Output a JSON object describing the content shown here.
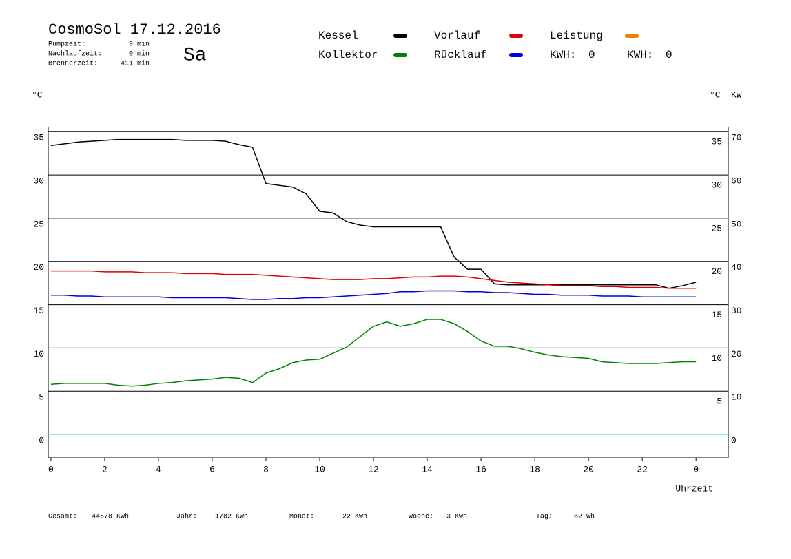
{
  "header": {
    "title": "CosmoSol 17.12.2016",
    "day": "Sa",
    "info": [
      {
        "label": "Pumpzeit:",
        "value": "9 min"
      },
      {
        "label": "Nachlaufzeit:",
        "value": "0 min"
      },
      {
        "label": "Brennerzeit:",
        "value": "411 min"
      }
    ],
    "kwh": [
      {
        "label": "KWH:",
        "value": 0,
        "color": "#f08000"
      },
      {
        "label": "KWH:",
        "value": 0,
        "color": "#800080"
      }
    ]
  },
  "chart_data": {
    "type": "line",
    "y_unit": "°C",
    "y2_unit_left": "°C",
    "y2_unit": "KW",
    "y2_color": "#e08000",
    "xlabel": "Uhrzeit",
    "x": [
      0,
      0.5,
      1,
      1.5,
      2,
      2.5,
      3,
      3.5,
      4,
      4.5,
      5,
      5.5,
      6,
      6.5,
      7,
      7.5,
      8,
      8.5,
      9,
      9.5,
      10,
      10.5,
      11,
      11.5,
      12,
      12.5,
      13,
      13.5,
      14,
      14.5,
      15,
      15.5,
      16,
      16.5,
      17,
      17.5,
      18,
      18.5,
      19,
      19.5,
      20,
      20.5,
      21,
      21.5,
      22,
      22.5,
      23,
      23.5,
      24
    ],
    "xlim": [
      -0.1,
      25.2
    ],
    "xticks": [
      0,
      2,
      4,
      6,
      8,
      10,
      12,
      14,
      16,
      18,
      20,
      22,
      {
        "value": 24,
        "label": "0"
      }
    ],
    "ylim": [
      -2.7,
      35.5
    ],
    "yticks": [
      0,
      5,
      10,
      15,
      20,
      25,
      30,
      35
    ],
    "yticks_right": [
      5,
      10,
      15,
      20,
      25,
      30,
      35
    ],
    "y2lim": [
      -5.4,
      71
    ],
    "y2ticks": [
      0,
      10,
      20,
      30,
      40,
      50,
      60,
      70
    ],
    "grid": true,
    "zero_line_color": "#40e0e0",
    "series": [
      {
        "name": "Kessel",
        "color": "#000000",
        "values": [
          33.4,
          33.6,
          33.8,
          33.9,
          34.0,
          34.1,
          34.1,
          34.1,
          34.1,
          34.1,
          34.0,
          34.0,
          34.0,
          33.9,
          33.5,
          33.2,
          29.0,
          28.8,
          28.6,
          27.8,
          25.8,
          25.6,
          24.6,
          24.2,
          24.0,
          24.0,
          24.0,
          24.0,
          24.0,
          24.0,
          20.5,
          19.1,
          19.1,
          17.4,
          17.3,
          17.3,
          17.3,
          17.3,
          17.3,
          17.3,
          17.3,
          17.3,
          17.3,
          17.3,
          17.3,
          17.3,
          16.9,
          17.2,
          17.6
        ]
      },
      {
        "name": "Vorlauf",
        "color": "#e00000",
        "values": [
          18.9,
          18.9,
          18.9,
          18.9,
          18.8,
          18.8,
          18.8,
          18.7,
          18.7,
          18.7,
          18.6,
          18.6,
          18.6,
          18.5,
          18.5,
          18.5,
          18.4,
          18.3,
          18.2,
          18.1,
          18.0,
          17.9,
          17.9,
          17.9,
          18.0,
          18.0,
          18.1,
          18.2,
          18.2,
          18.3,
          18.3,
          18.2,
          18.0,
          17.8,
          17.6,
          17.5,
          17.4,
          17.3,
          17.2,
          17.2,
          17.2,
          17.1,
          17.1,
          17.0,
          17.0,
          17.0,
          16.9,
          16.9,
          16.9
        ]
      },
      {
        "name": "Leistung",
        "color": "#f08000",
        "values": [
          null,
          null,
          null,
          null,
          null,
          null,
          null,
          null,
          null,
          null,
          null,
          null,
          null,
          null,
          null,
          null,
          null,
          null,
          null,
          null,
          null,
          null,
          null,
          null,
          null,
          null,
          null,
          null,
          null,
          null,
          null,
          null,
          null,
          null,
          null,
          null,
          null,
          null,
          null,
          null,
          null,
          null,
          null,
          null,
          null,
          null,
          null,
          null,
          null
        ]
      },
      {
        "name": "Kollektor",
        "color": "#008000",
        "values": [
          5.8,
          5.9,
          5.9,
          5.9,
          5.9,
          5.7,
          5.6,
          5.7,
          5.9,
          6.0,
          6.2,
          6.3,
          6.4,
          6.6,
          6.5,
          6.0,
          7.1,
          7.6,
          8.3,
          8.6,
          8.7,
          9.4,
          10.1,
          11.3,
          12.5,
          13.0,
          12.5,
          12.8,
          13.3,
          13.3,
          12.8,
          11.9,
          10.8,
          10.2,
          10.2,
          9.9,
          9.5,
          9.2,
          9.0,
          8.9,
          8.8,
          8.4,
          8.3,
          8.2,
          8.2,
          8.2,
          8.3,
          8.4,
          8.4
        ]
      },
      {
        "name": "Rücklauf",
        "color": "#0000e0",
        "values": [
          16.1,
          16.1,
          16.0,
          16.0,
          15.9,
          15.9,
          15.9,
          15.9,
          15.9,
          15.8,
          15.8,
          15.8,
          15.8,
          15.8,
          15.7,
          15.6,
          15.6,
          15.7,
          15.7,
          15.8,
          15.8,
          15.9,
          16.0,
          16.1,
          16.2,
          16.3,
          16.5,
          16.5,
          16.6,
          16.6,
          16.6,
          16.5,
          16.5,
          16.4,
          16.4,
          16.3,
          16.2,
          16.2,
          16.1,
          16.1,
          16.1,
          16.0,
          16.0,
          16.0,
          15.9,
          15.9,
          15.9,
          15.9,
          15.9
        ]
      }
    ]
  },
  "footer": [
    {
      "label": "Gesamt:",
      "value": "44678 KWh"
    },
    {
      "label": "Jahr:",
      "value": "1782 KWh"
    },
    {
      "label": "Monat:",
      "value": "22 KWh"
    },
    {
      "label": "Woche:",
      "value": "3 KWh"
    },
    {
      "label": "Tag:",
      "value": "82 Wh"
    }
  ]
}
